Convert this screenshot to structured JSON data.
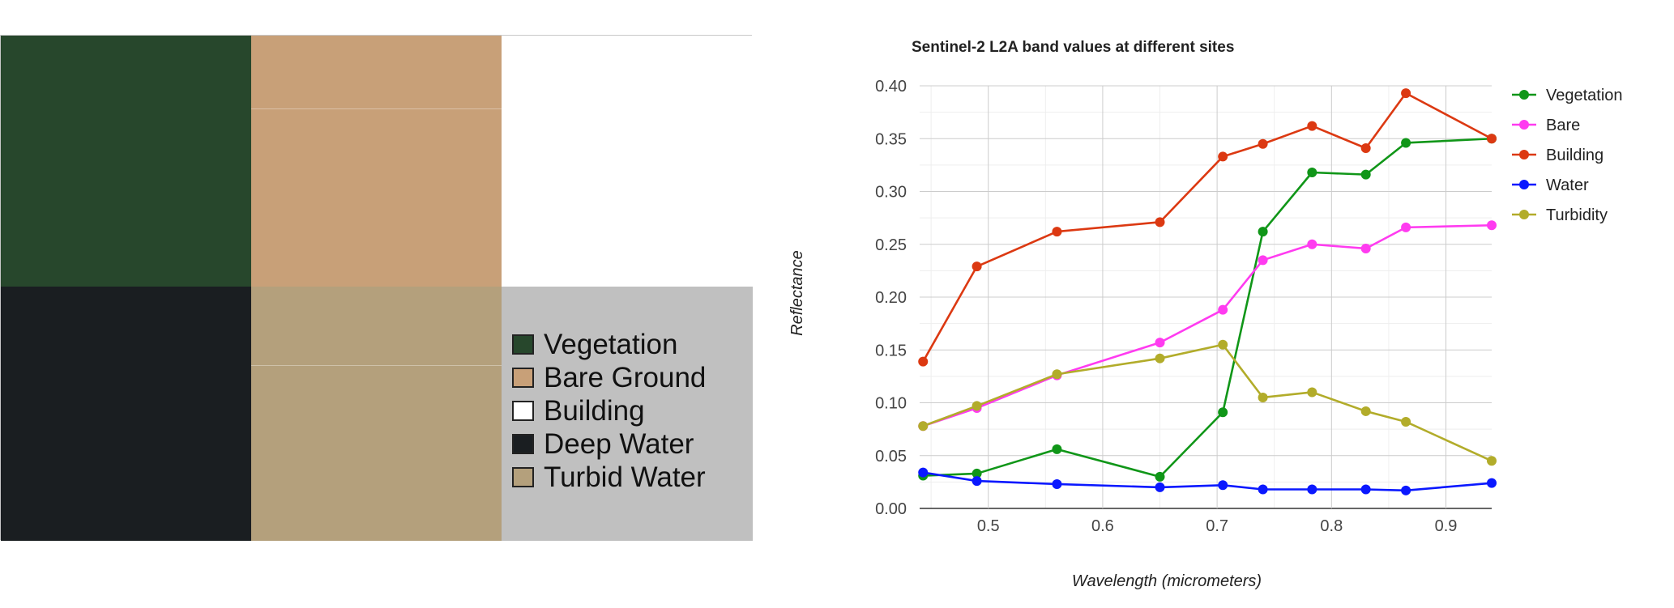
{
  "swatches": [
    {
      "name": "Vegetation",
      "color": "#27472c"
    },
    {
      "name": "Bare Ground",
      "color": "#c8a078"
    },
    {
      "name": "Building",
      "color": "#ffffff"
    },
    {
      "name": "Deep Water",
      "color": "#1a1e21"
    },
    {
      "name": "Turbid Water",
      "color": "#b4a07c"
    }
  ],
  "swatch_legend_bg": "#c0c0c0",
  "chart_data": {
    "type": "line",
    "title": "Sentinel-2 L2A band values at different sites",
    "xlabel": "Wavelength (micrometers)",
    "ylabel": "Reflectance",
    "xlim": [
      0.44,
      0.94
    ],
    "ylim": [
      0,
      0.4
    ],
    "xticks": [
      "0.5",
      "0.6",
      "0.7",
      "0.8",
      "0.9"
    ],
    "yticks": [
      "0.00",
      "0.05",
      "0.10",
      "0.15",
      "0.20",
      "0.25",
      "0.30",
      "0.35",
      "0.40"
    ],
    "grid": true,
    "legend_position": "right",
    "x": [
      0.443,
      0.49,
      0.56,
      0.65,
      0.705,
      0.74,
      0.783,
      0.83,
      0.865,
      0.94
    ],
    "series": [
      {
        "name": "Vegetation",
        "color": "#109618",
        "values": [
          0.031,
          0.033,
          0.056,
          0.03,
          0.091,
          0.262,
          0.318,
          0.316,
          0.346,
          0.35
        ]
      },
      {
        "name": "Bare",
        "color": "#ff3bf0",
        "values": [
          0.078,
          0.095,
          0.126,
          0.157,
          0.188,
          0.235,
          0.25,
          0.246,
          0.266,
          0.268
        ]
      },
      {
        "name": "Building",
        "color": "#dc3912",
        "values": [
          0.139,
          0.229,
          0.262,
          0.271,
          0.333,
          0.345,
          0.362,
          0.341,
          0.393,
          0.35
        ]
      },
      {
        "name": "Water",
        "color": "#0a18ff",
        "values": [
          0.034,
          0.026,
          0.023,
          0.02,
          0.022,
          0.018,
          0.018,
          0.018,
          0.017,
          0.024
        ]
      },
      {
        "name": "Turbidity",
        "color": "#b2ac2a",
        "values": [
          0.078,
          0.097,
          0.127,
          0.142,
          0.155,
          0.105,
          0.11,
          0.092,
          0.082,
          0.045
        ]
      }
    ]
  }
}
